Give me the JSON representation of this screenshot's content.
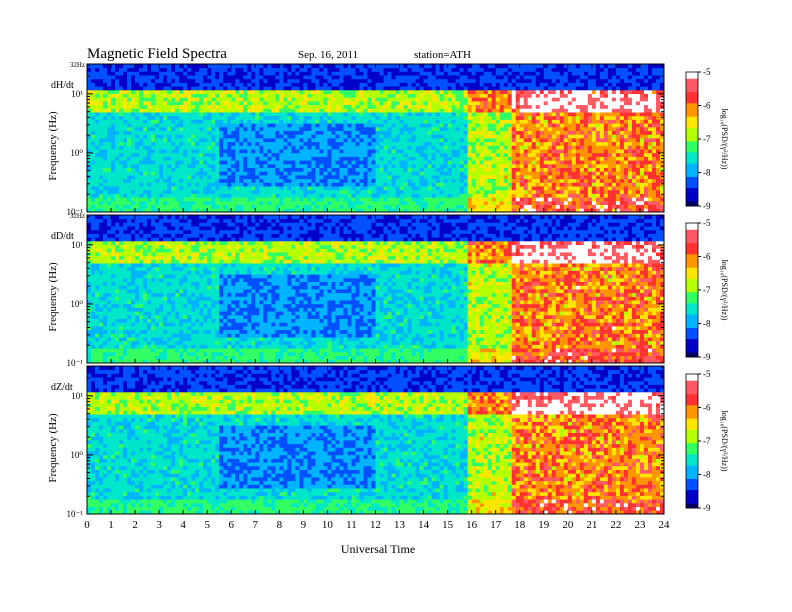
{
  "header": {
    "title": "Magnetic  Field  Spectra",
    "date": "Sep. 16, 2011",
    "station": "station=ATH"
  },
  "colors": {
    "scale": [
      "#000060",
      "#0000c8",
      "#0050ff",
      "#00b4ff",
      "#00e6c8",
      "#32ff64",
      "#b4ff00",
      "#ffe600",
      "#ff9600",
      "#ff3232",
      "#ff5a64",
      "#ffffff"
    ]
  },
  "chart_data": [
    {
      "type": "heatmap",
      "panel_label": "dH/dt",
      "ylabel": "Frequency  (Hz)",
      "top_label": "32Hz",
      "ytick_labels": [
        "10⁻¹",
        "10⁰",
        "10¹"
      ],
      "yticks": [
        0.1,
        1,
        10
      ],
      "ylim": [
        0.1,
        32
      ],
      "yscale": "log",
      "xlim": [
        0,
        24
      ],
      "colorbar": {
        "label": "log₁₀(PSD/(γ²/Hz))",
        "range": [
          -9,
          -5
        ],
        "tick_labels": [
          "-5",
          "-6",
          "-7",
          "-8",
          "-9"
        ]
      }
    },
    {
      "type": "heatmap",
      "panel_label": "dD/dt",
      "ylabel": "Frequency  (Hz)",
      "top_label": "32Hz",
      "ytick_labels": [
        "10⁻¹",
        "10⁰",
        "10¹"
      ],
      "yticks": [
        0.1,
        1,
        10
      ],
      "ylim": [
        0.1,
        32
      ],
      "yscale": "log",
      "xlim": [
        0,
        24
      ],
      "colorbar": {
        "label": "log₁₀(PSD/(γ²/Hz))",
        "range": [
          -9,
          -5
        ],
        "tick_labels": [
          "-5",
          "-6",
          "-7",
          "-8",
          "-9"
        ]
      }
    },
    {
      "type": "heatmap",
      "panel_label": "dZ/dt",
      "ylabel": "Frequency  (Hz)",
      "top_label": "",
      "ytick_labels": [
        "10⁻¹",
        "10⁰",
        "10¹"
      ],
      "yticks": [
        0.1,
        1,
        10
      ],
      "ylim": [
        0.1,
        32
      ],
      "yscale": "log",
      "xlim": [
        0,
        24
      ],
      "colorbar": {
        "label": "log₁₀(PSD/(γ²/Hz))",
        "range": [
          -9,
          -5
        ],
        "tick_labels": [
          "-5",
          "-6",
          "-7",
          "-8",
          "-9"
        ]
      }
    }
  ],
  "xaxis": {
    "label": "Universal Time",
    "tick_labels": [
      "0",
      "1",
      "2",
      "3",
      "4",
      "5",
      "6",
      "7",
      "8",
      "9",
      "10",
      "11",
      "12",
      "13",
      "14",
      "15",
      "16",
      "17",
      "18",
      "19",
      "20",
      "21",
      "22",
      "23",
      "24"
    ]
  }
}
